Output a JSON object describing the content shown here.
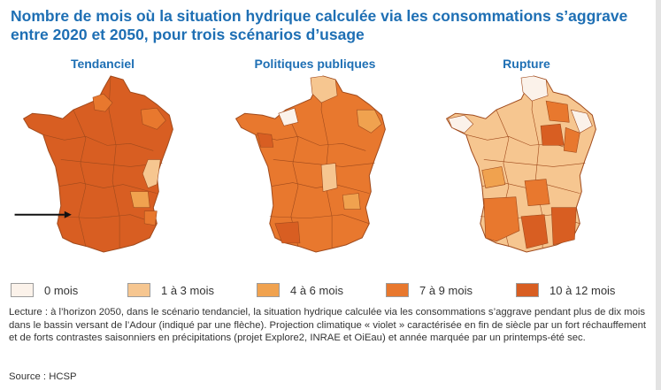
{
  "title": "Nombre de mois où la situation hydrique calculée via les consommations s’aggrave entre 2020 et 2050, pour trois scénarios d’usage",
  "colors": {
    "title": "#1e6fb4",
    "class_0": "#fbf2ea",
    "class_1_3": "#f6c690",
    "class_4_6": "#f0a24f",
    "class_7_9": "#e8782e",
    "class_10_12": "#d85e22",
    "border": "#a04a1c"
  },
  "maps": [
    {
      "label": "Tendanciel",
      "dominant_class": "10 à 12 mois"
    },
    {
      "label": "Politiques publiques",
      "dominant_class": "7 à 9 mois"
    },
    {
      "label": "Rupture",
      "dominant_class": "1 à 3 mois"
    }
  ],
  "legend": [
    {
      "label": "0 mois",
      "color": "#fbf2ea"
    },
    {
      "label": "1 à 3 mois",
      "color": "#f6c690"
    },
    {
      "label": "4 à 6 mois",
      "color": "#f0a24f"
    },
    {
      "label": "7 à 9 mois",
      "color": "#e8782e"
    },
    {
      "label": "10 à 12 mois",
      "color": "#d85e22"
    }
  ],
  "reading_note": "Lecture : à l’horizon 2050, dans le scénario tendanciel, la situation hydrique calculée via les consommations s’aggrave pendant plus de dix mois dans le bassin versant de l’Adour (indiqué par une flèche). Projection climatique « violet » caractérisée en fin de siècle par un fort réchauffement et de forts contrastes saisonniers en précipitations (projet Explore2, INRAE et OiEau) et année marquée par un printemps-été sec.",
  "source": "Source : HCSP"
}
